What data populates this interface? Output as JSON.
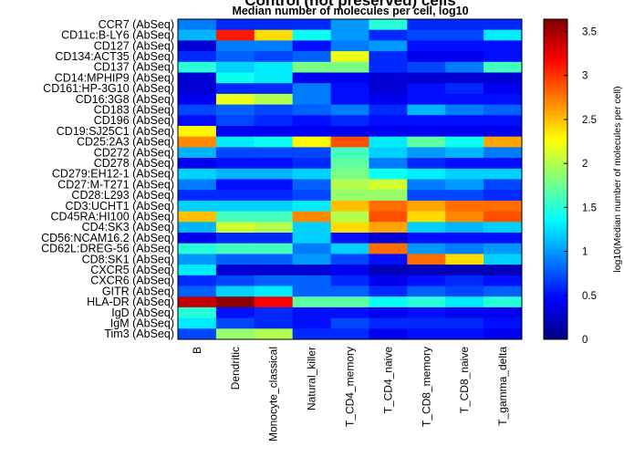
{
  "chart_data": {
    "type": "heatmap",
    "title": "Control (not preserved) cells",
    "subtitle": "Median number of molecules per cell, log10",
    "colorbar_label": "log10(Median number of molecules per cell)",
    "colormap": "jet",
    "rows": [
      "CCR7 (AbSeq)",
      "CD11c:B-LY6 (AbSeq)",
      "CD127 (AbSeq)",
      "CD134:ACT35 (AbSeq)",
      "CD137 (AbSeq)",
      "CD14:MPHIP9 (AbSeq)",
      "CD161:HP-3G10 (AbSeq)",
      "CD16:3G8 (AbSeq)",
      "CD183 (AbSeq)",
      "CD196 (AbSeq)",
      "CD19:SJ25C1 (AbSeq)",
      "CD25:2A3 (AbSeq)",
      "CD272 (AbSeq)",
      "CD278 (AbSeq)",
      "CD279:EH12-1 (AbSeq)",
      "CD27:M-T271 (AbSeq)",
      "CD28:L293 (AbSeq)",
      "CD3:UCHT1 (AbSeq)",
      "CD45RA:HI100 (AbSeq)",
      "CD4:SK3 (AbSeq)",
      "CD56:NCAM16.2 (AbSeq)",
      "CD62L:DREG-56 (AbSeq)",
      "CD8:SK1 (AbSeq)",
      "CXCR5 (AbSeq)",
      "CXCR6 (AbSeq)",
      "GITR (AbSeq)",
      "HLA-DR (AbSeq)",
      "IgD (AbSeq)",
      "IgM (AbSeq)",
      "Tim3 (AbSeq)"
    ],
    "columns": [
      "B",
      "Dendritic",
      "Monocyte_classical",
      "Natural_killer",
      "T_CD4_memory",
      "T_CD4_naive",
      "T_CD8_memory",
      "T_CD8_naive",
      "T_gamma_delta"
    ],
    "values": [
      [
        0.9,
        0.6,
        0.6,
        0.6,
        1.0,
        1.5,
        0.6,
        0.6,
        0.6
      ],
      [
        1.1,
        3.1,
        2.4,
        1.4,
        1.0,
        0.6,
        0.7,
        0.7,
        1.3
      ],
      [
        0.3,
        0.9,
        0.9,
        0.5,
        0.9,
        1.0,
        0.5,
        0.5,
        0.5
      ],
      [
        0.6,
        0.8,
        0.7,
        0.8,
        2.2,
        0.6,
        0.4,
        0.4,
        0.5
      ],
      [
        1.5,
        1.2,
        1.3,
        1.8,
        1.8,
        0.6,
        0.7,
        0.9,
        1.6
      ],
      [
        0.3,
        1.4,
        1.3,
        0.4,
        0.4,
        0.3,
        0.3,
        0.3,
        0.3
      ],
      [
        0.3,
        0.6,
        0.6,
        0.9,
        0.5,
        0.3,
        0.5,
        0.6,
        0.4
      ],
      [
        0.4,
        2.2,
        2.0,
        0.9,
        0.5,
        0.4,
        0.5,
        0.5,
        0.5
      ],
      [
        0.7,
        0.8,
        0.7,
        0.8,
        0.9,
        0.6,
        1.1,
        0.9,
        0.8
      ],
      [
        0.5,
        0.7,
        0.6,
        0.5,
        0.6,
        0.5,
        0.5,
        0.5,
        0.5
      ],
      [
        2.3,
        0.4,
        0.4,
        0.4,
        0.4,
        0.4,
        0.4,
        0.4,
        0.4
      ],
      [
        2.7,
        1.3,
        1.4,
        2.3,
        2.9,
        1.3,
        1.7,
        1.4,
        2.6
      ],
      [
        1.1,
        0.7,
        0.7,
        0.7,
        1.6,
        1.2,
        1.0,
        1.1,
        0.9
      ],
      [
        0.4,
        0.5,
        0.5,
        0.6,
        1.7,
        0.9,
        0.6,
        0.5,
        0.5
      ],
      [
        1.2,
        1.1,
        1.1,
        1.2,
        1.8,
        1.4,
        1.3,
        1.2,
        1.2
      ],
      [
        0.9,
        0.5,
        0.5,
        0.8,
        2.0,
        2.1,
        0.9,
        1.0,
        0.7
      ],
      [
        0.6,
        0.6,
        0.6,
        0.7,
        1.9,
        1.9,
        0.7,
        0.7,
        0.6
      ],
      [
        1.2,
        1.2,
        1.2,
        1.3,
        2.5,
        2.8,
        2.6,
        2.8,
        2.8
      ],
      [
        2.5,
        1.6,
        1.6,
        2.7,
        2.0,
        2.9,
        2.4,
        2.7,
        2.9
      ],
      [
        1.1,
        2.1,
        2.0,
        1.2,
        2.4,
        2.6,
        1.2,
        1.1,
        1.2
      ],
      [
        0.4,
        0.6,
        0.6,
        1.2,
        0.5,
        0.3,
        0.5,
        0.5,
        0.5
      ],
      [
        1.5,
        1.6,
        1.6,
        0.9,
        1.2,
        2.8,
        1.0,
        0.9,
        1.0
      ],
      [
        1.0,
        0.8,
        0.8,
        1.0,
        0.7,
        0.5,
        2.8,
        2.4,
        1.2
      ],
      [
        1.3,
        0.3,
        0.3,
        0.3,
        0.4,
        0.2,
        0.2,
        0.2,
        0.2
      ],
      [
        0.6,
        0.7,
        0.8,
        0.8,
        0.6,
        0.4,
        0.5,
        0.6,
        0.5
      ],
      [
        0.8,
        1.2,
        1.3,
        0.8,
        0.8,
        0.6,
        0.8,
        0.7,
        0.8
      ],
      [
        3.4,
        3.6,
        3.2,
        1.7,
        1.7,
        1.4,
        1.5,
        1.3,
        1.5
      ],
      [
        1.5,
        0.5,
        0.6,
        0.5,
        0.5,
        0.4,
        0.5,
        0.4,
        0.4
      ],
      [
        1.3,
        0.7,
        0.6,
        0.5,
        0.7,
        0.6,
        0.6,
        0.6,
        0.5
      ],
      [
        0.7,
        1.9,
        2.0,
        0.6,
        0.6,
        0.4,
        0.5,
        0.5,
        0.4
      ]
    ],
    "clim": [
      0,
      3.64
    ],
    "cticks": [
      0,
      0.5,
      1,
      1.5,
      2,
      2.5,
      3,
      3.5
    ]
  }
}
